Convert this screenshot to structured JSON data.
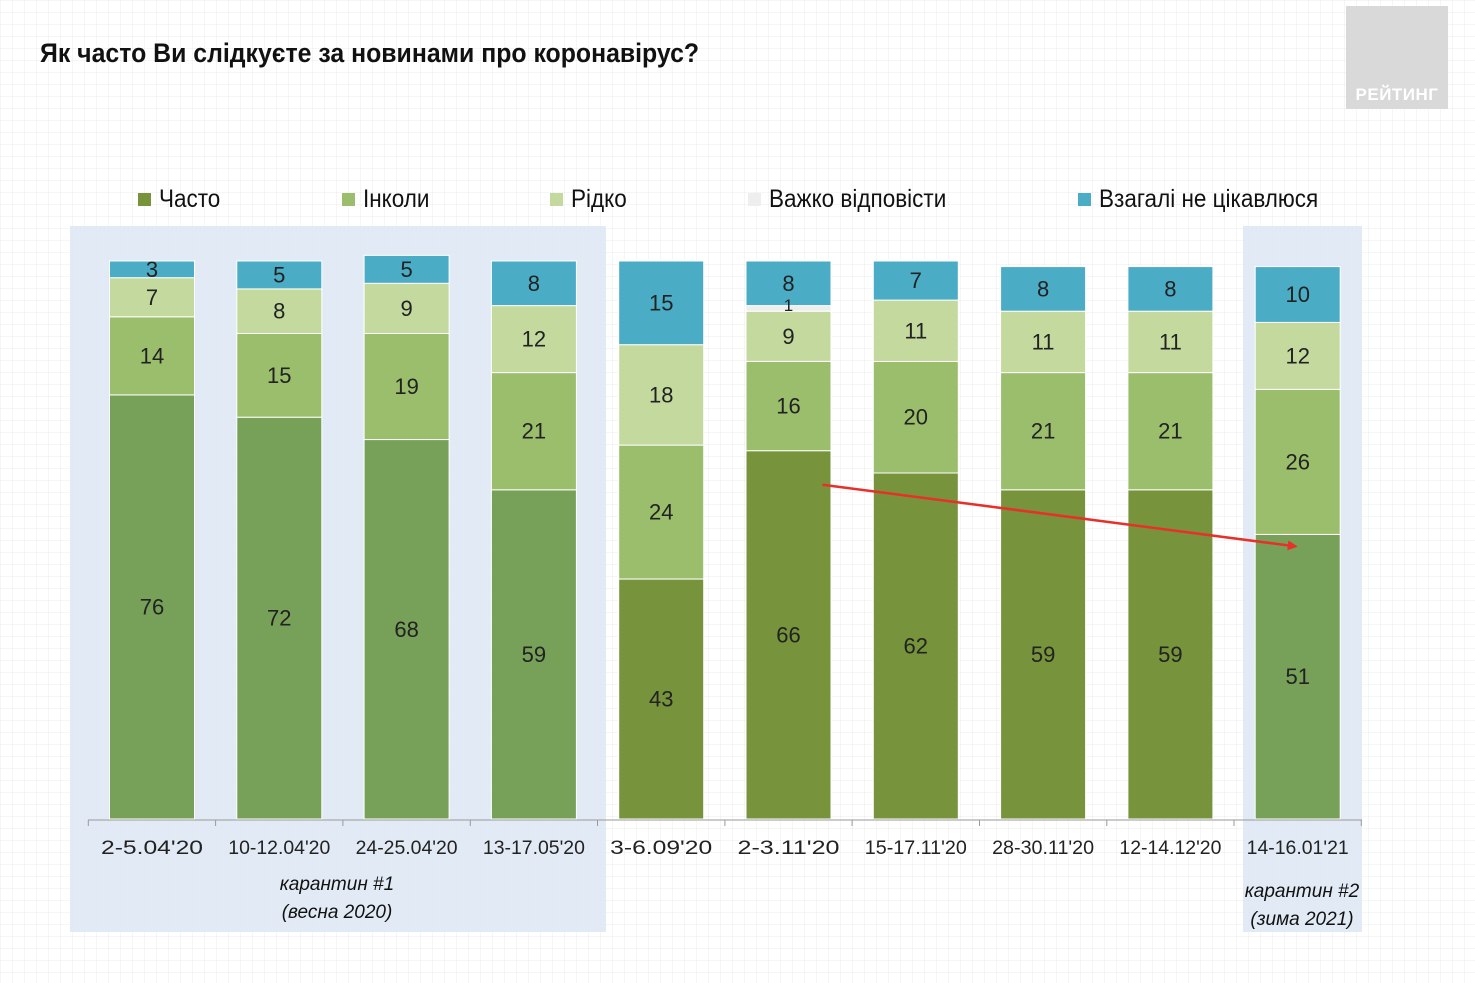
{
  "title": "Як часто Ви слідкуєте за новинами про коронавірус?",
  "logo": {
    "text": "РЕЙТИНГ"
  },
  "chart_data": {
    "type": "bar",
    "stacked": true,
    "title": "Як часто Ви слідкуєте за новинами про коронавірус?",
    "categories": [
      "2-5.04'20",
      "10-12.04'20",
      "24-25.04'20",
      "13-17.05'20",
      "3-6.09'20",
      "2-3.11'20",
      "15-17.11'20",
      "28-30.11'20",
      "12-14.12'20",
      "14-16.01'21"
    ],
    "series": [
      {
        "name": "Часто",
        "color": "#77a059",
        "values": [
          76,
          72,
          68,
          59,
          43,
          66,
          62,
          59,
          59,
          51
        ]
      },
      {
        "name": "Інколи",
        "color": "#9bbe6c",
        "values": [
          14,
          15,
          19,
          21,
          24,
          16,
          20,
          21,
          21,
          26
        ]
      },
      {
        "name": "Рідко",
        "color": "#c4d99e",
        "values": [
          7,
          8,
          9,
          12,
          18,
          9,
          11,
          11,
          11,
          12
        ]
      },
      {
        "name": "Важко відповісти",
        "color": "#eeeeee",
        "values": [
          0,
          0,
          0,
          0,
          0,
          1,
          0,
          0,
          0,
          0
        ]
      },
      {
        "name": "Взагалі не цікавлюся",
        "color": "#4aacc5",
        "values": [
          3,
          5,
          5,
          8,
          15,
          8,
          7,
          8,
          8,
          10
        ]
      }
    ],
    "highlighted_categories": [
      0,
      1,
      2,
      3,
      9
    ],
    "darker_often_categories": [
      4,
      5,
      6,
      7,
      8
    ],
    "darker_often_color": "#77933c",
    "trend_arrow": {
      "from_category": "2-3.11'20",
      "to_category": "14-16.01'21",
      "color": "#e8302a"
    },
    "legend_position": "top"
  },
  "annotations": {
    "quarantine1": [
      "карантин #1",
      "(весна 2020)"
    ],
    "quarantine2": [
      "карантин #2",
      "(зима 2021)"
    ]
  }
}
